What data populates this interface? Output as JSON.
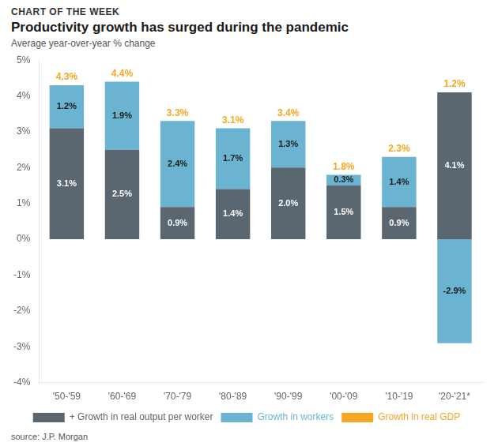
{
  "chart_data": {
    "type": "bar",
    "supertitle": "CHART OF THE WEEK",
    "title": "Productivity growth has surged during the pandemic",
    "subtitle": "Average year-over-year % change",
    "source": "source: J.P. Morgan",
    "categories": [
      "'50-'59",
      "'60-'69",
      "'70-'79",
      "'80-'89",
      "'90-'99",
      "'00-'09",
      "'10-'19",
      "'20-'21*"
    ],
    "series": [
      {
        "name": "+ Growth in real output per worker",
        "color": "#5b6770",
        "values": [
          3.1,
          2.5,
          0.9,
          1.4,
          2.0,
          1.5,
          0.9,
          4.1
        ],
        "value_labels": [
          "3.1%",
          "2.5%",
          "0.9%",
          "1.4%",
          "2.0%",
          "1.5%",
          "0.9%",
          "4.1%"
        ]
      },
      {
        "name": "Growth in workers",
        "color": "#6ab4d2",
        "values": [
          1.2,
          1.9,
          2.4,
          1.7,
          1.3,
          0.3,
          1.4,
          -2.9
        ],
        "value_labels": [
          "1.2%",
          "1.9%",
          "2.4%",
          "1.7%",
          "1.3%",
          "0.3%",
          "1.4%",
          "-2.9%"
        ]
      },
      {
        "name": "Growth in real GDP",
        "color": "#f5a623",
        "type": "label",
        "values": [
          4.3,
          4.4,
          3.3,
          3.1,
          3.4,
          1.8,
          2.3,
          1.2
        ],
        "value_labels": [
          "4.3%",
          "4.4%",
          "3.3%",
          "3.1%",
          "3.4%",
          "1.8%",
          "2.3%",
          "1.2%"
        ]
      }
    ],
    "stacked": true,
    "data_labels": true,
    "ylim": [
      -4,
      5
    ],
    "yticks": [
      {
        "value": -4,
        "label": "-4%"
      },
      {
        "value": -3,
        "label": "-3%"
      },
      {
        "value": -2,
        "label": "-2%"
      },
      {
        "value": -1,
        "label": "-1%"
      },
      {
        "value": 0,
        "label": "0%"
      },
      {
        "value": 1,
        "label": "1%"
      },
      {
        "value": 2,
        "label": "2%"
      },
      {
        "value": 3,
        "label": "3%"
      },
      {
        "value": 4,
        "label": "4%"
      },
      {
        "value": 5,
        "label": "5%"
      }
    ],
    "grid": false,
    "legend": "bottom"
  }
}
